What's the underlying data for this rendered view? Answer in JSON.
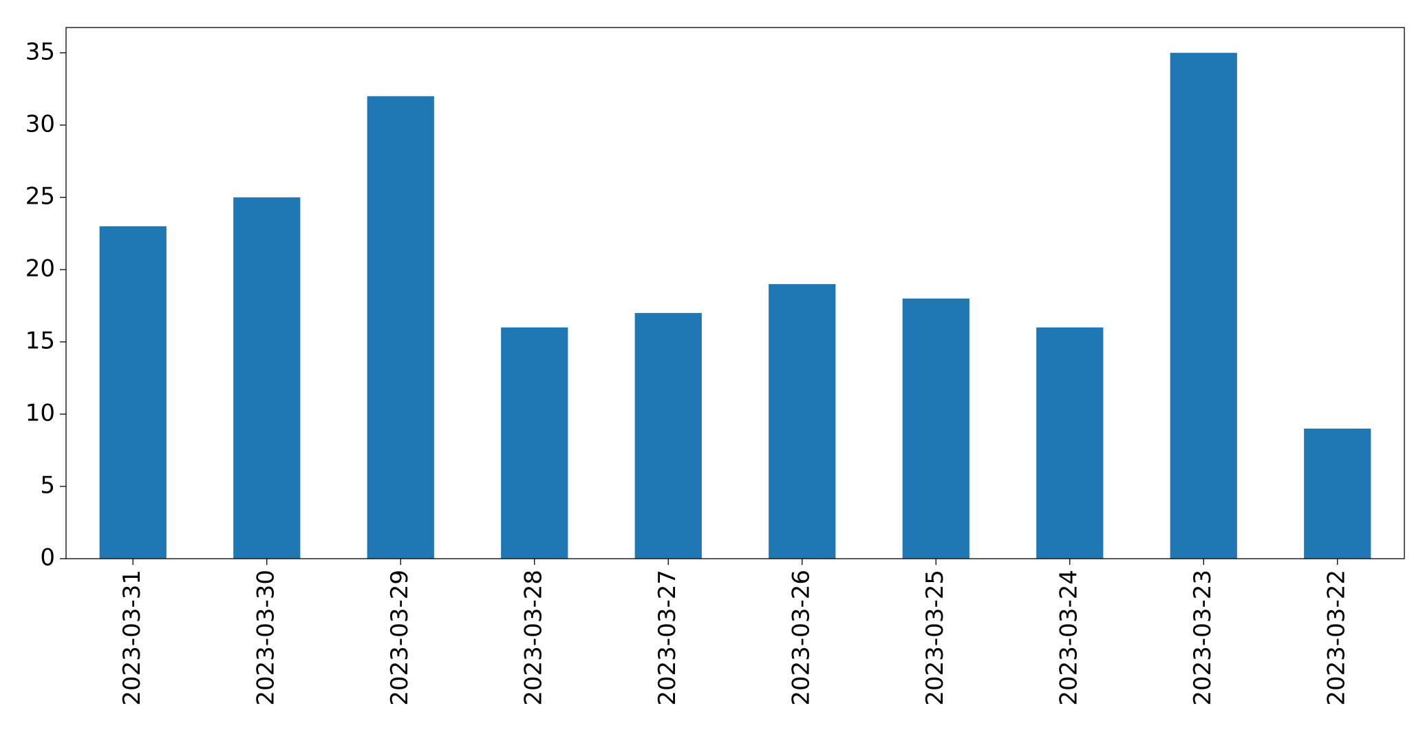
{
  "chart_data": {
    "type": "bar",
    "categories": [
      "2023-03-31",
      "2023-03-30",
      "2023-03-29",
      "2023-03-28",
      "2023-03-27",
      "2023-03-26",
      "2023-03-25",
      "2023-03-24",
      "2023-03-23",
      "2023-03-22"
    ],
    "values": [
      23,
      25,
      32,
      16,
      17,
      19,
      18,
      16,
      35,
      9
    ],
    "color": "#1f77b4",
    "ylim": [
      0,
      36.75
    ],
    "yticks": [
      0,
      5,
      10,
      15,
      20,
      25,
      30,
      35
    ],
    "grid": false
  }
}
